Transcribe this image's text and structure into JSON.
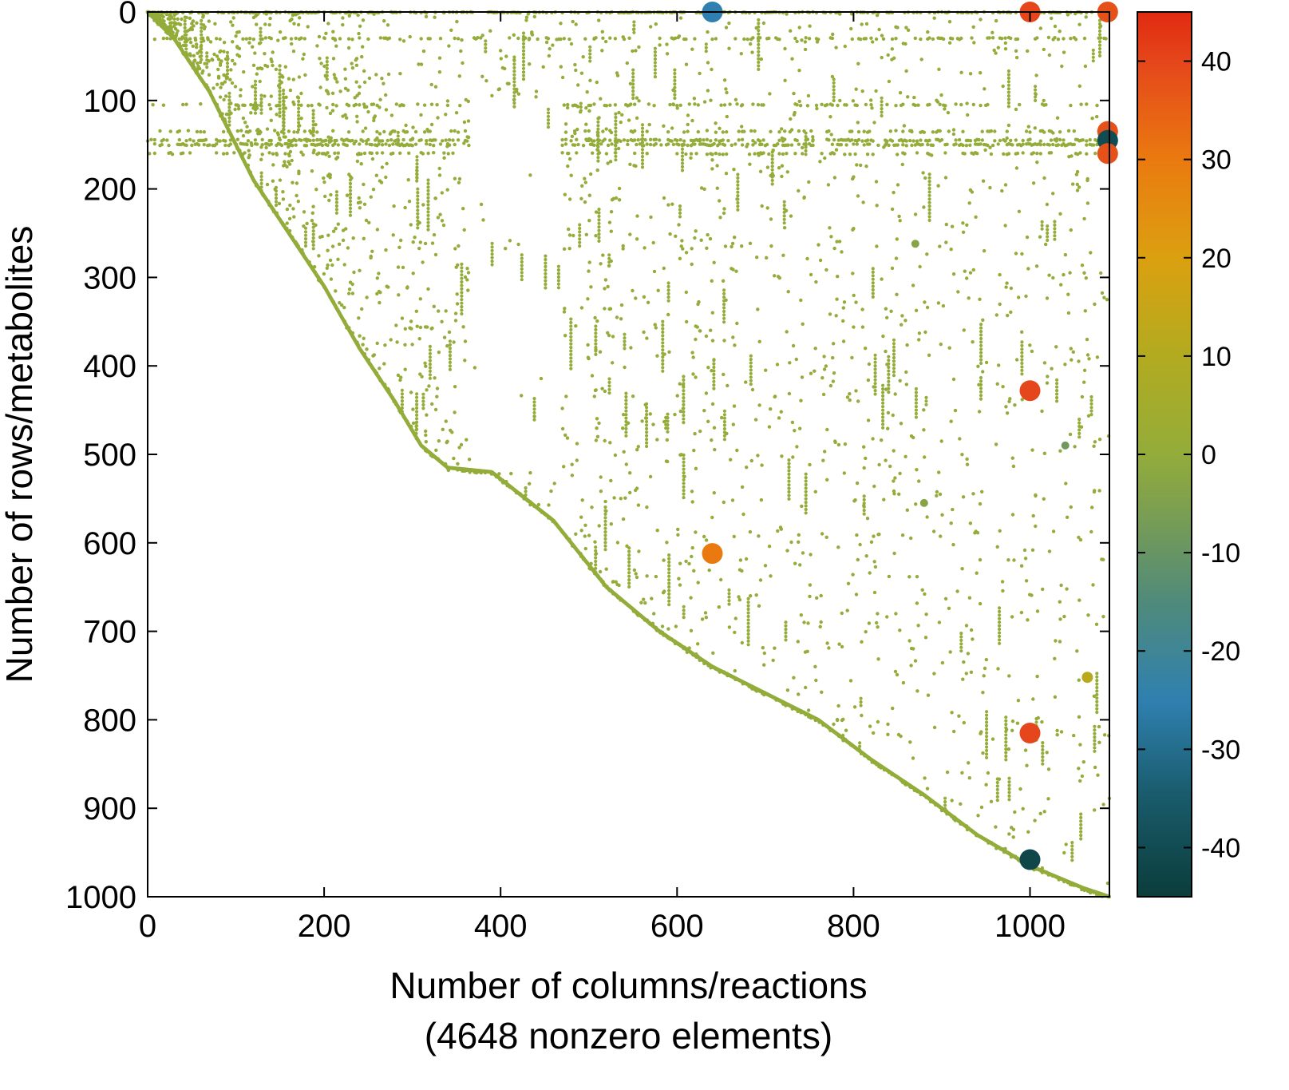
{
  "chart_data": {
    "type": "scatter",
    "subtype": "sparsity-pattern",
    "xlabel": "Number of columns/reactions",
    "xlabel_note": "(4648 nonzero elements)",
    "ylabel": "Number of rows/metabolites",
    "xlim": [
      0,
      1090
    ],
    "ylim": [
      1000,
      0
    ],
    "y_axis_inverted": true,
    "x_ticks": [
      0,
      200,
      400,
      600,
      800,
      1000
    ],
    "y_ticks": [
      0,
      100,
      200,
      300,
      400,
      500,
      600,
      700,
      800,
      900,
      1000
    ],
    "colorbar": {
      "range": [
        -45,
        45
      ],
      "ticks": [
        40,
        30,
        20,
        10,
        0,
        -10,
        -20,
        -30,
        -40
      ],
      "tick_labels": [
        "40",
        "30",
        "20",
        "10",
        "0",
        "-10",
        "-20",
        "-30",
        "-40"
      ],
      "stops": [
        {
          "v": -45,
          "color": "#0b3d3b"
        },
        {
          "v": -35,
          "color": "#195a6a"
        },
        {
          "v": -25,
          "color": "#2f80b0"
        },
        {
          "v": -15,
          "color": "#4f8a7a"
        },
        {
          "v": -5,
          "color": "#7fa04e"
        },
        {
          "v": 0,
          "color": "#93ac3a"
        },
        {
          "v": 10,
          "color": "#b2ab20"
        },
        {
          "v": 20,
          "color": "#dba010"
        },
        {
          "v": 30,
          "color": "#ea7a10"
        },
        {
          "v": 40,
          "color": "#e5461b"
        },
        {
          "v": 45,
          "color": "#e12a10"
        }
      ]
    },
    "grid": false,
    "legend": "none",
    "point_color_near_zero": "#93ac3a",
    "diagonal_band": [
      [
        0,
        0
      ],
      [
        30,
        30
      ],
      [
        70,
        90
      ],
      [
        90,
        130
      ],
      [
        120,
        190
      ],
      [
        160,
        250
      ],
      [
        200,
        310
      ],
      [
        240,
        380
      ],
      [
        280,
        440
      ],
      [
        310,
        490
      ],
      [
        340,
        515
      ],
      [
        390,
        520
      ],
      [
        460,
        575
      ],
      [
        520,
        650
      ],
      [
        580,
        700
      ],
      [
        640,
        740
      ],
      [
        700,
        770
      ],
      [
        760,
        800
      ],
      [
        820,
        845
      ],
      [
        880,
        885
      ],
      [
        940,
        930
      ],
      [
        1000,
        965
      ],
      [
        1060,
        990
      ],
      [
        1090,
        1000
      ]
    ],
    "row_bands": [
      0,
      30,
      105,
      135,
      145,
      150,
      160
    ],
    "notable_points": [
      {
        "x": 640,
        "y": 0,
        "value": -25
      },
      {
        "x": 1000,
        "y": 0,
        "value": 40
      },
      {
        "x": 1088,
        "y": 0,
        "value": 38
      },
      {
        "x": 1088,
        "y": 135,
        "value": 38
      },
      {
        "x": 1088,
        "y": 145,
        "value": -40
      },
      {
        "x": 1088,
        "y": 160,
        "value": 38
      },
      {
        "x": 1000,
        "y": 428,
        "value": 40
      },
      {
        "x": 1040,
        "y": 490,
        "value": -8
      },
      {
        "x": 640,
        "y": 612,
        "value": 30
      },
      {
        "x": 1065,
        "y": 752,
        "value": 12
      },
      {
        "x": 1000,
        "y": 815,
        "value": 40
      },
      {
        "x": 1000,
        "y": 958,
        "value": -42
      },
      {
        "x": 880,
        "y": 555,
        "value": -3
      },
      {
        "x": 870,
        "y": 262,
        "value": -3
      }
    ]
  }
}
